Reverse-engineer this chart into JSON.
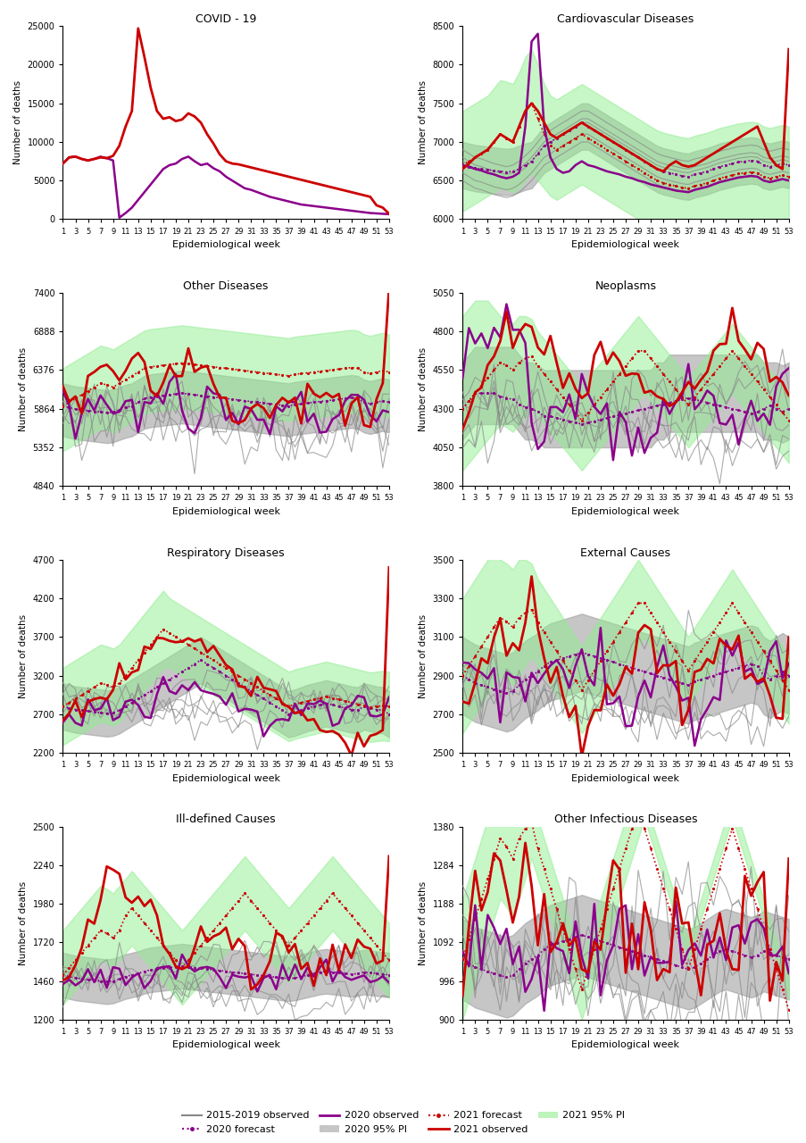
{
  "panels": [
    {
      "title": "COVID - 19",
      "ylim": [
        0,
        25000
      ],
      "yticks": [
        0,
        5000,
        10000,
        15000,
        20000,
        25000
      ]
    },
    {
      "title": "Cardiovascular Diseases",
      "ylim": [
        6000,
        8500
      ],
      "yticks": [
        6000,
        6500,
        7000,
        7500,
        8000,
        8500
      ]
    },
    {
      "title": "Other Diseases",
      "ylim": [
        4840,
        7400
      ],
      "yticks": [
        4840,
        5352,
        5864,
        6376,
        6888,
        7400
      ]
    },
    {
      "title": "Neoplasms",
      "ylim": [
        3800,
        5050
      ],
      "yticks": [
        3800,
        4050,
        4300,
        4550,
        4800,
        5050
      ]
    },
    {
      "title": "Respiratory Diseases",
      "ylim": [
        2200,
        4700
      ],
      "yticks": [
        2200,
        2700,
        3200,
        3700,
        4200,
        4700
      ]
    },
    {
      "title": "External Causes",
      "ylim": [
        2500,
        3500
      ],
      "yticks": [
        2500,
        2700,
        2900,
        3100,
        3300,
        3500
      ]
    },
    {
      "title": "Ill-defined Causes",
      "ylim": [
        1200,
        2500
      ],
      "yticks": [
        1200,
        1460,
        1720,
        1980,
        2240,
        2500
      ]
    },
    {
      "title": "Other Infectious Diseases",
      "ylim": [
        900,
        1380
      ],
      "yticks": [
        900,
        996,
        1092,
        1188,
        1284,
        1380
      ]
    }
  ],
  "xtick_labels": [
    "1",
    "3",
    "5",
    "7",
    "9",
    "11",
    "13",
    "15",
    "17",
    "19",
    "21",
    "23",
    "25",
    "27",
    "29",
    "31",
    "33",
    "35",
    "37",
    "39",
    "41",
    "43",
    "45",
    "47",
    "49",
    "51",
    "53"
  ],
  "xtick_positions": [
    1,
    3,
    5,
    7,
    9,
    11,
    13,
    15,
    17,
    19,
    21,
    23,
    25,
    27,
    29,
    31,
    33,
    35,
    37,
    39,
    41,
    43,
    45,
    47,
    49,
    51,
    53
  ],
  "color_hist": "#888888",
  "color_2020obs": "#8B008B",
  "color_2021obs": "#CC0000",
  "color_2020fc": "#9370DB",
  "color_2021fc": "#CC0000",
  "color_pi2020": "#A0A0A0",
  "color_pi2021": "#90EE90",
  "alpha_pi": 0.5,
  "ylabel": "Number of deaths",
  "xlabel": "Epidemiological week"
}
